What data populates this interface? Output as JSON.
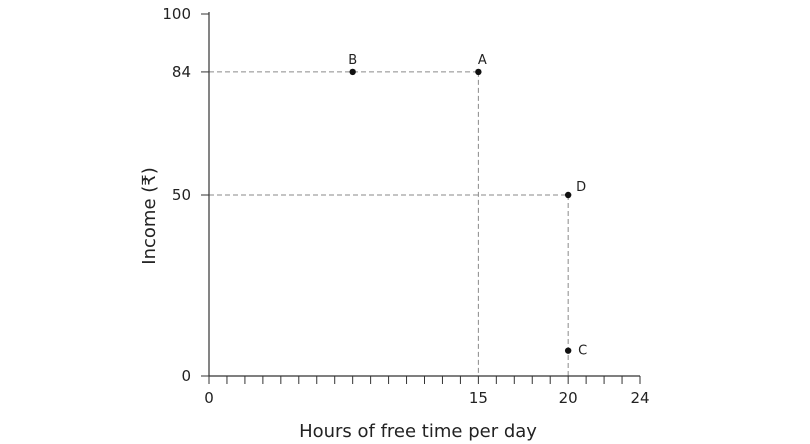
{
  "chart_data": {
    "type": "scatter",
    "title": "",
    "xlabel": "Hours of free time per day",
    "ylabel": "Income (₹)",
    "xlim": [
      0,
      24
    ],
    "ylim": [
      0,
      100
    ],
    "x_tick_labels": [
      "0",
      "15",
      "20",
      "24"
    ],
    "y_tick_labels": [
      "0",
      "50",
      "84",
      "100"
    ],
    "x_minor_step": 1,
    "grid": false,
    "points": [
      {
        "label": "A",
        "x": 15,
        "y": 84
      },
      {
        "label": "B",
        "x": 8,
        "y": 84
      },
      {
        "label": "C",
        "x": 20,
        "y": 7
      },
      {
        "label": "D",
        "x": 20,
        "y": 50
      }
    ],
    "reference_lines": [
      {
        "from": [
          0,
          84
        ],
        "to": [
          15,
          84
        ]
      },
      {
        "from": [
          15,
          84
        ],
        "to": [
          15,
          0
        ]
      },
      {
        "from": [
          0,
          50
        ],
        "to": [
          20,
          50
        ]
      },
      {
        "from": [
          20,
          50
        ],
        "to": [
          20,
          0
        ]
      }
    ]
  }
}
